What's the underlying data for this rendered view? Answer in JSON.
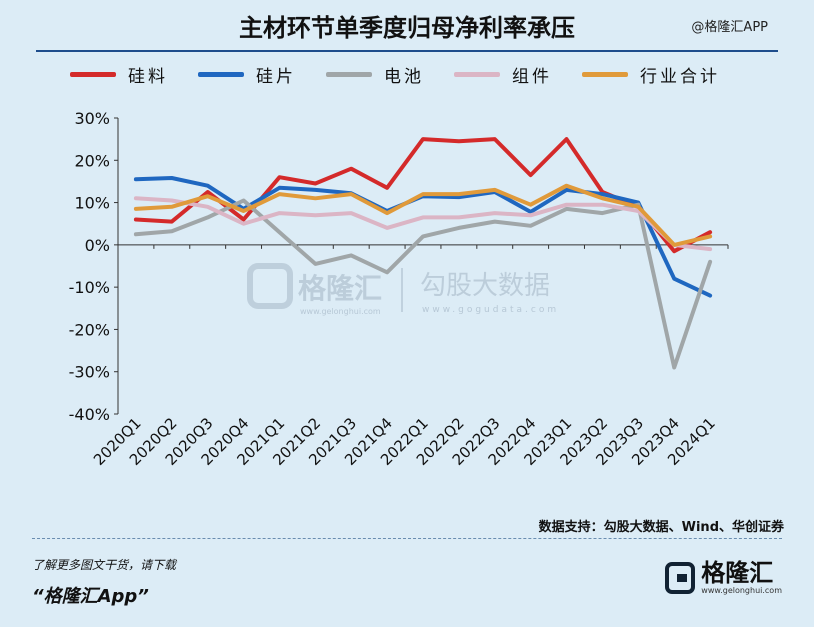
{
  "title": "主材环节单季度归母净利率承压",
  "watermark_top": "@格隆汇APP",
  "watermark_center": {
    "brand": "格隆汇",
    "brand_url": "www.gelonghui.com",
    "partner": "勾股大数据",
    "partner_url": "www.gogudata.com"
  },
  "source": "数据支持：勾股大数据、Wind、华创证券",
  "cta": {
    "line1": "了解更多图文干货，请下载",
    "line2": "“格隆汇App”"
  },
  "logo": {
    "name": "格隆汇",
    "url": "www.gelonghui.com"
  },
  "chart_data": {
    "type": "line",
    "title": "主材环节单季度归母净利率承压",
    "categories": [
      "2020Q1",
      "2020Q2",
      "2020Q3",
      "2020Q4",
      "2021Q1",
      "2021Q2",
      "2021Q3",
      "2021Q4",
      "2022Q1",
      "2022Q2",
      "2022Q3",
      "2022Q4",
      "2023Q1",
      "2023Q2",
      "2023Q3",
      "2023Q4",
      "2024Q1"
    ],
    "y_ticks": [
      "30%",
      "20%",
      "10%",
      "0%",
      "-10%",
      "-20%",
      "-30%",
      "-40%"
    ],
    "ylim": [
      -40,
      30
    ],
    "legend_position": "top",
    "series": [
      {
        "name": "硅料",
        "color": "#d42a2a",
        "values": [
          6,
          5.5,
          12.5,
          6,
          16,
          14.5,
          18,
          13.5,
          25,
          24.5,
          25,
          16.5,
          25,
          12.5,
          9,
          -1.5,
          3
        ]
      },
      {
        "name": "硅片",
        "color": "#1f67c0",
        "values": [
          15.5,
          15.8,
          14,
          8.5,
          13.5,
          13,
          12.2,
          8,
          11.5,
          11.3,
          12.5,
          7.8,
          13,
          12,
          10,
          -8,
          -12
        ]
      },
      {
        "name": "电池",
        "color": "#a0a6a8",
        "values": [
          2.5,
          3.2,
          6.5,
          10.5,
          3,
          -4.5,
          -2.5,
          -6.5,
          2,
          4,
          5.5,
          4.5,
          8.5,
          7.5,
          9.5,
          -29,
          -4
        ]
      },
      {
        "name": "组件",
        "color": "#dbb5c5",
        "values": [
          11,
          10.5,
          9,
          5,
          7.5,
          7,
          7.5,
          4,
          6.5,
          6.5,
          7.5,
          7,
          9.5,
          9.5,
          8,
          0,
          -1
        ]
      },
      {
        "name": "行业合计",
        "color": "#e09a3a",
        "values": [
          8.5,
          9,
          11.5,
          8,
          12,
          11,
          12,
          7.5,
          12,
          12,
          13,
          9.5,
          14,
          11,
          9,
          0,
          2
        ]
      }
    ]
  }
}
